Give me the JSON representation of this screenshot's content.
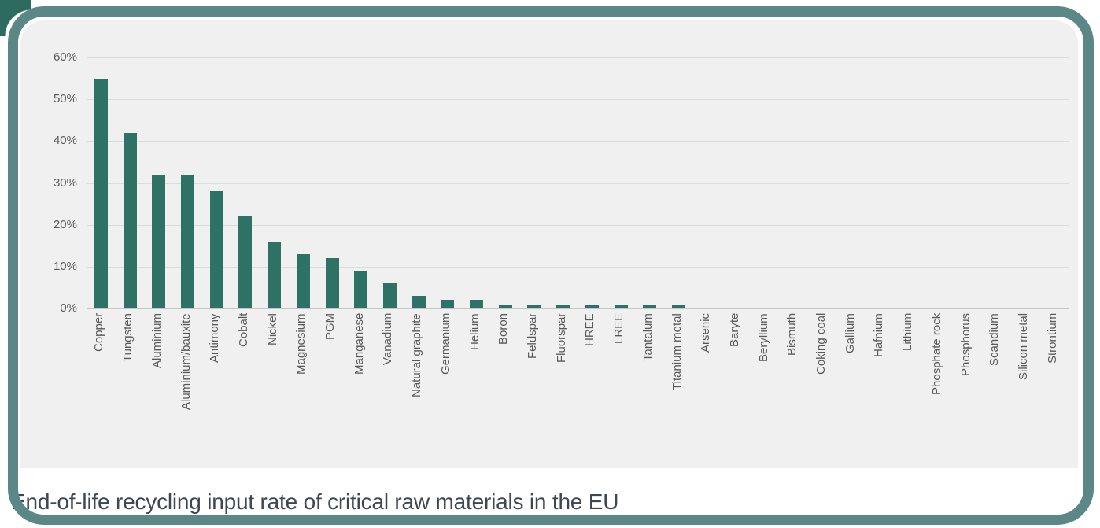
{
  "figure": {
    "caption": "End-of-life recycling input rate of critical raw materials in the EU"
  },
  "colors": {
    "bar": "#2e7265",
    "card_border": "#5b8886",
    "corner_accent": "#2d6b60",
    "chart_background": "#f0f0f0",
    "gridline": "#dcdcdc",
    "axis_text": "#595959",
    "caption_text": "#3d4653"
  },
  "chart_data": {
    "type": "bar",
    "title": "",
    "xlabel": "",
    "ylabel": "",
    "ylim": [
      0,
      60
    ],
    "ytick_step": 10,
    "ytick_labels": [
      "0%",
      "10%",
      "20%",
      "30%",
      "40%",
      "50%",
      "60%"
    ],
    "grid": true,
    "legend": false,
    "categories": [
      "Copper",
      "Tungsten",
      "Aluminium",
      "Aluminium/bauxite",
      "Antimony",
      "Cobalt",
      "Nickel",
      "Magnesium",
      "PGM",
      "Manganese",
      "Vanadium",
      "Natural graphite",
      "Germanium",
      "Helium",
      "Boron",
      "Feldspar",
      "Fluorspar",
      "HREE",
      "LREE",
      "Tantalum",
      "Titanium metal",
      "Arsenic",
      "Baryte",
      "Beryllium",
      "Bismuth",
      "Coking coal",
      "Gallium",
      "Hafnium",
      "Lithium",
      "Phosphate rock",
      "Phosphorus",
      "Scandium",
      "Silicon metal",
      "Strontium"
    ],
    "values": [
      55,
      42,
      32,
      32,
      28,
      22,
      16,
      13,
      12,
      9,
      6,
      3,
      2,
      2,
      1,
      1,
      1,
      1,
      1,
      1,
      1,
      0,
      0,
      0,
      0,
      0,
      0,
      0,
      0,
      0,
      0,
      0,
      0,
      0
    ],
    "value_unit": "%"
  }
}
